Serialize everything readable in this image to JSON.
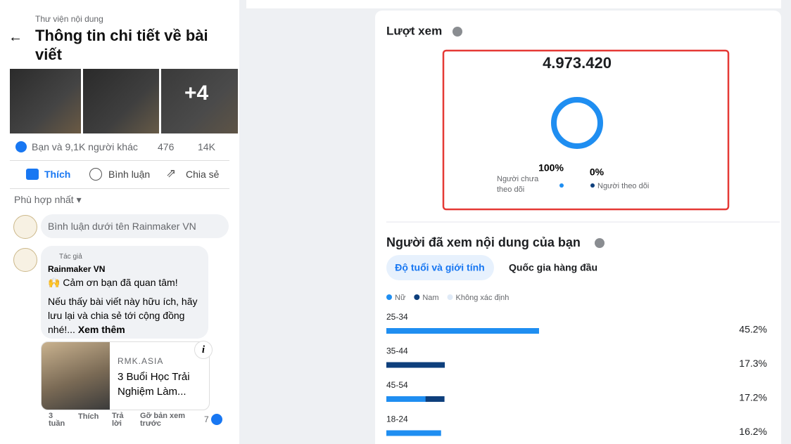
{
  "left": {
    "breadcrumb": "Thư viện nội dung",
    "title": "Thông tin chi tiết về bài viết",
    "more_images": "+4",
    "reactions": "Bạn và 9,1K người khác",
    "comments_count": 476,
    "shares_count": "14K",
    "actions": [
      "Thích",
      "Bình luận",
      "Chia sẻ"
    ],
    "sort": "Phù hợp nhất",
    "comment_placeholder": "Bình luận dưới tên Rainmaker VN",
    "comment": {
      "badge": "Tác giả",
      "author": "Rainmaker VN",
      "line1": "🙌 Cảm ơn bạn đã quan tâm!",
      "line2": "Nếu thấy bài viết này hữu ích, hãy lưu lại và chia sẻ tới cộng đồng nhé!...",
      "see_more": "Xem thêm",
      "link_domain": "RMK.ASIA",
      "link_title": "3 Buổi Học Trải Nghiệm Làm...",
      "time": "3 tuần",
      "like": "Thích",
      "reply": "Trả lời",
      "remove_preview": "Gỡ bản xem trước",
      "reaction_count": 7
    }
  },
  "views": {
    "title": "Lượt xem",
    "total": "4.973.420",
    "non_followers": {
      "value": 100,
      "label": "100%",
      "name": "Người chưa theo dõi",
      "color": "#1f8ef1"
    },
    "followers": {
      "value": 0,
      "label": "0%",
      "name": "Người theo dõi",
      "color": "#0e3f7c"
    }
  },
  "audience": {
    "title": "Người đã xem nội dung của bạn",
    "tabs": [
      "Độ tuổi và giới tính",
      "Quốc gia hàng đầu"
    ],
    "legend": [
      {
        "name": "Nữ",
        "color": "#1f8ef1"
      },
      {
        "name": "Nam",
        "color": "#0e3f7c"
      },
      {
        "name": "Không xác định",
        "color": "#dfeaf7"
      }
    ],
    "rows": [
      {
        "label": "25-34",
        "value": 45.2,
        "value_label": "45.2%",
        "male": 0
      },
      {
        "label": "35-44",
        "value": 17.3,
        "value_label": "17.3%",
        "male": 17.3
      },
      {
        "label": "45-54",
        "value": 17.2,
        "value_label": "17.2%",
        "male": 5.6
      },
      {
        "label": "18-24",
        "value": 16.2,
        "value_label": "16.2%",
        "male": 0
      }
    ]
  }
}
